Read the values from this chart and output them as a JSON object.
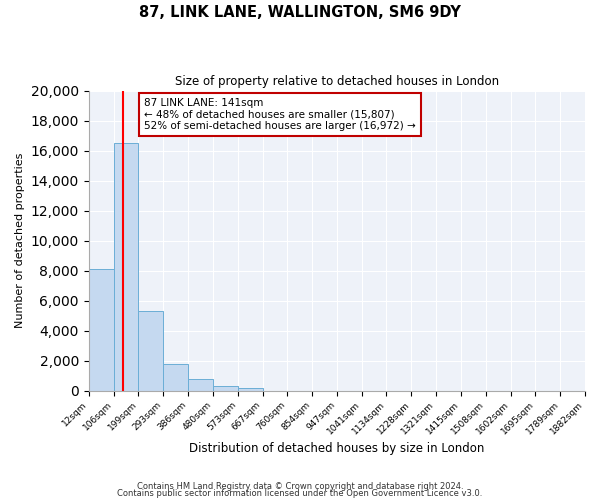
{
  "title": "87, LINK LANE, WALLINGTON, SM6 9DY",
  "subtitle": "Size of property relative to detached houses in London",
  "xlabel": "Distribution of detached houses by size in London",
  "ylabel": "Number of detached properties",
  "bin_edges": [
    12,
    106,
    199,
    293,
    386,
    480,
    573,
    667,
    760,
    854,
    947,
    1041,
    1134,
    1228,
    1321,
    1415,
    1508,
    1602,
    1695,
    1789,
    1882
  ],
  "bin_labels": [
    "12sqm",
    "106sqm",
    "199sqm",
    "293sqm",
    "386sqm",
    "480sqm",
    "573sqm",
    "667sqm",
    "760sqm",
    "854sqm",
    "947sqm",
    "1041sqm",
    "1134sqm",
    "1228sqm",
    "1321sqm",
    "1415sqm",
    "1508sqm",
    "1602sqm",
    "1695sqm",
    "1789sqm",
    "1882sqm"
  ],
  "bar_heights": [
    8100,
    16500,
    5300,
    1800,
    750,
    300,
    200,
    0,
    0,
    0,
    0,
    0,
    0,
    0,
    0,
    0,
    0,
    0,
    0,
    0
  ],
  "bar_color": "#c5d9f0",
  "bar_edgecolor": "#6baed6",
  "property_value": 141,
  "annotation_title": "87 LINK LANE: 141sqm",
  "annotation_line1": "← 48% of detached houses are smaller (15,807)",
  "annotation_line2": "52% of semi-detached houses are larger (16,972) →",
  "annotation_box_edgecolor": "#c00000",
  "ylim": [
    0,
    20000
  ],
  "yticks": [
    0,
    2000,
    4000,
    6000,
    8000,
    10000,
    12000,
    14000,
    16000,
    18000,
    20000
  ],
  "bg_color": "#eef2f9",
  "grid_color": "#ffffff",
  "footer1": "Contains HM Land Registry data © Crown copyright and database right 2024.",
  "footer2": "Contains public sector information licensed under the Open Government Licence v3.0."
}
